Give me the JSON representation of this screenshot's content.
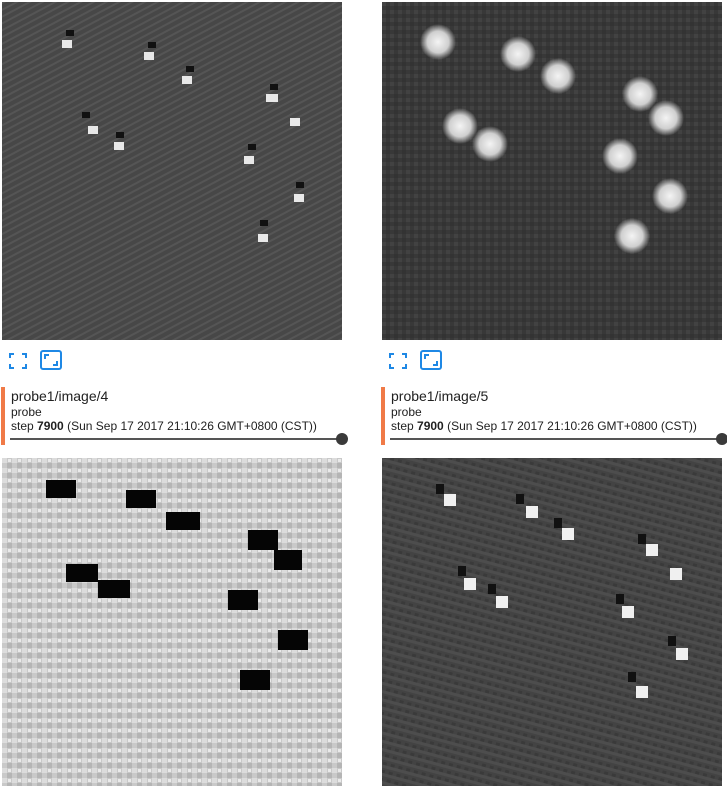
{
  "cards": [
    {
      "title": "probe1/image/4",
      "run": "probe",
      "step_label": "step",
      "step_value": "7900",
      "step_time": "(Sun Sep 17 2017 21:10:26 GMT+0800 (CST))",
      "image_desc": "light-noise-dark-blobs",
      "slider_position": 1.0
    },
    {
      "title": "probe1/image/5",
      "run": "probe",
      "step_label": "step",
      "step_value": "7900",
      "step_time": "(Sun Sep 17 2017 21:10:26 GMT+0800 (CST))",
      "image_desc": "dark-noise-bright-spots",
      "slider_position": 1.0
    }
  ],
  "icons": {
    "fit": "fullscreen-fit-icon",
    "actual": "actual-size-icon"
  },
  "colors": {
    "accent": "#f07a47",
    "icon_blue": "#1e88e5"
  }
}
